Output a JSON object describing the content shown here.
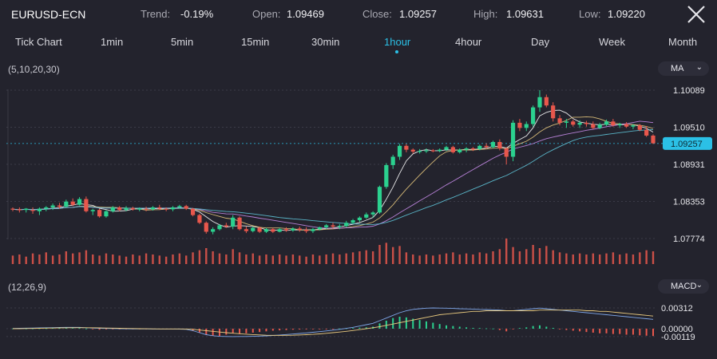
{
  "header": {
    "symbol": "EURUSD-ECN",
    "trend_label": "Trend:",
    "trend_value": "-0.19%",
    "open_label": "Open:",
    "open_value": "1.09469",
    "close_label": "Close:",
    "close_value": "1.09257",
    "high_label": "High:",
    "high_value": "1.09631",
    "low_label": "Low:",
    "low_value": "1.09220",
    "close_icon": "close-x-icon"
  },
  "tabs": [
    "Tick Chart",
    "1min",
    "5min",
    "15min",
    "30min",
    "1hour",
    "4hour",
    "Day",
    "Week",
    "Month"
  ],
  "active_tab": "1hour",
  "price_panel": {
    "ma_params": "(5,10,20,30)",
    "indicator_label": "MA",
    "price_levels": [
      "1.10089",
      "1.09510",
      "1.08931",
      "1.08353",
      "1.07774"
    ],
    "current_price": "1.09257"
  },
  "macd_panel": {
    "params": "(12,26,9)",
    "indicator_label": "MACD",
    "levels": [
      "0.00312",
      "0.00000",
      "-0.00119"
    ]
  },
  "colors": {
    "background": "#23232d",
    "bull": "#2bd18f",
    "bear": "#e8574c",
    "accent": "#2bc0e6",
    "ma5": "#ffffff",
    "ma10": "#e8c97e",
    "ma20": "#c58be8",
    "ma30": "#5fc4d8"
  },
  "chart_data": {
    "type": "candlestick",
    "timeframe": "1hour",
    "y_ticks": [
      1.07774,
      1.08353,
      1.08931,
      1.0951,
      1.10089
    ],
    "current_price": 1.09257,
    "candles": [
      [
        1.0824,
        1.0826,
        1.082,
        1.0823
      ],
      [
        1.0823,
        1.0826,
        1.0818,
        1.0822
      ],
      [
        1.0822,
        1.0825,
        1.0818,
        1.0824
      ],
      [
        1.0822,
        1.0826,
        1.0816,
        1.0821
      ],
      [
        1.082,
        1.0826,
        1.0814,
        1.0824
      ],
      [
        1.0824,
        1.0828,
        1.082,
        1.0826
      ],
      [
        1.0826,
        1.0832,
        1.0822,
        1.0829
      ],
      [
        1.0829,
        1.0833,
        1.0824,
        1.0827
      ],
      [
        1.0827,
        1.0838,
        1.0826,
        1.0835
      ],
      [
        1.0835,
        1.084,
        1.0828,
        1.083
      ],
      [
        1.083,
        1.0842,
        1.0829,
        1.0839
      ],
      [
        1.0839,
        1.0843,
        1.0818,
        1.082
      ],
      [
        1.082,
        1.0824,
        1.0814,
        1.0822
      ],
      [
        1.0822,
        1.0824,
        1.081,
        1.0812
      ],
      [
        1.0812,
        1.0822,
        1.081,
        1.082
      ],
      [
        1.082,
        1.0828,
        1.0818,
        1.0826
      ],
      [
        1.0826,
        1.0828,
        1.082,
        1.0822
      ],
      [
        1.0822,
        1.0828,
        1.082,
        1.0825
      ],
      [
        1.0825,
        1.0827,
        1.0821,
        1.0823
      ],
      [
        1.0823,
        1.0826,
        1.082,
        1.0824
      ],
      [
        1.0824,
        1.0827,
        1.082,
        1.0823
      ],
      [
        1.0823,
        1.0828,
        1.0821,
        1.0826
      ],
      [
        1.0826,
        1.083,
        1.0822,
        1.0824
      ],
      [
        1.0824,
        1.0826,
        1.082,
        1.0823
      ],
      [
        1.0823,
        1.0828,
        1.082,
        1.0826
      ],
      [
        1.0826,
        1.083,
        1.0824,
        1.0828
      ],
      [
        1.0828,
        1.083,
        1.0822,
        1.0824
      ],
      [
        1.0824,
        1.0825,
        1.0812,
        1.0814
      ],
      [
        1.0814,
        1.0816,
        1.08,
        1.0802
      ],
      [
        1.0802,
        1.0804,
        1.0785,
        1.0788
      ],
      [
        1.0788,
        1.0795,
        1.0784,
        1.0792
      ],
      [
        1.0792,
        1.08,
        1.079,
        1.0798
      ],
      [
        1.0798,
        1.0802,
        1.0794,
        1.0796
      ],
      [
        1.0796,
        1.0814,
        1.0792,
        1.081
      ],
      [
        1.081,
        1.0812,
        1.079,
        1.0792
      ],
      [
        1.0792,
        1.0796,
        1.0786,
        1.0789
      ],
      [
        1.0789,
        1.0796,
        1.0787,
        1.0794
      ],
      [
        1.0794,
        1.0796,
        1.0786,
        1.0788
      ],
      [
        1.0788,
        1.0794,
        1.0786,
        1.0792
      ],
      [
        1.0792,
        1.0794,
        1.0786,
        1.0788
      ],
      [
        1.0788,
        1.0794,
        1.0787,
        1.0792
      ],
      [
        1.0792,
        1.0795,
        1.0788,
        1.079
      ],
      [
        1.079,
        1.0795,
        1.0788,
        1.0793
      ],
      [
        1.0793,
        1.0796,
        1.0788,
        1.0791
      ],
      [
        1.0791,
        1.0795,
        1.0786,
        1.0789
      ],
      [
        1.0789,
        1.0794,
        1.0786,
        1.0792
      ],
      [
        1.0792,
        1.0796,
        1.079,
        1.0795
      ],
      [
        1.0795,
        1.08,
        1.0792,
        1.0798
      ],
      [
        1.0798,
        1.0802,
        1.0793,
        1.0796
      ],
      [
        1.0796,
        1.08,
        1.0792,
        1.0797
      ],
      [
        1.0797,
        1.0805,
        1.0795,
        1.0802
      ],
      [
        1.0802,
        1.0808,
        1.08,
        1.0806
      ],
      [
        1.0806,
        1.0812,
        1.0803,
        1.081
      ],
      [
        1.081,
        1.0818,
        1.0808,
        1.0815
      ],
      [
        1.0815,
        1.082,
        1.081,
        1.0818
      ],
      [
        1.0818,
        1.086,
        1.0816,
        1.0858
      ],
      [
        1.0858,
        1.0895,
        1.0855,
        1.0892
      ],
      [
        1.0892,
        1.0908,
        1.0886,
        1.0905
      ],
      [
        1.0905,
        1.0925,
        1.09,
        1.0922
      ],
      [
        1.0922,
        1.0925,
        1.0912,
        1.0916
      ],
      [
        1.0916,
        1.0918,
        1.091,
        1.0913
      ],
      [
        1.0913,
        1.0917,
        1.091,
        1.0914
      ],
      [
        1.0914,
        1.0918,
        1.0911,
        1.0915
      ],
      [
        1.0915,
        1.0917,
        1.0912,
        1.0914
      ],
      [
        1.0914,
        1.0918,
        1.0912,
        1.0916
      ],
      [
        1.0916,
        1.0922,
        1.0914,
        1.092
      ],
      [
        1.092,
        1.0922,
        1.091,
        1.0912
      ],
      [
        1.0912,
        1.0918,
        1.091,
        1.0916
      ],
      [
        1.0916,
        1.092,
        1.0912,
        1.0918
      ],
      [
        1.0918,
        1.092,
        1.0914,
        1.0917
      ],
      [
        1.0917,
        1.0924,
        1.0915,
        1.0922
      ],
      [
        1.0922,
        1.0926,
        1.0918,
        1.092
      ],
      [
        1.092,
        1.093,
        1.0918,
        1.0928
      ],
      [
        1.0928,
        1.0932,
        1.0915,
        1.0918
      ],
      [
        1.0918,
        1.092,
        1.0893,
        1.0905
      ],
      [
        1.0905,
        1.0962,
        1.0898,
        1.0958
      ],
      [
        1.0958,
        1.0964,
        1.0945,
        1.095
      ],
      [
        1.095,
        1.096,
        1.0945,
        1.0956
      ],
      [
        1.0956,
        1.0985,
        1.0952,
        1.0982
      ],
      [
        1.0982,
        1.1009,
        1.0975,
        1.0998
      ],
      [
        1.0998,
        1.1002,
        1.0982,
        1.0985
      ],
      [
        1.0985,
        1.099,
        1.096,
        1.0965
      ],
      [
        1.0965,
        1.097,
        1.0954,
        1.0958
      ],
      [
        1.0958,
        1.0964,
        1.095,
        1.096
      ],
      [
        1.096,
        1.0963,
        1.0952,
        1.0955
      ],
      [
        1.0955,
        1.0962,
        1.095,
        1.0958
      ],
      [
        1.0958,
        1.0961,
        1.0952,
        1.0956
      ],
      [
        1.0956,
        1.096,
        1.0948,
        1.095
      ],
      [
        1.095,
        1.0958,
        1.0948,
        1.0955
      ],
      [
        1.0955,
        1.0963,
        1.0953,
        1.096
      ],
      [
        1.096,
        1.0964,
        1.0952,
        1.0954
      ],
      [
        1.0954,
        1.0958,
        1.095,
        1.0956
      ],
      [
        1.0956,
        1.0959,
        1.095,
        1.0952
      ],
      [
        1.0952,
        1.0956,
        1.0948,
        1.0954
      ],
      [
        1.0954,
        1.0956,
        1.0945,
        1.0947
      ],
      [
        1.0947,
        1.0953,
        1.0936,
        1.0938
      ],
      [
        1.0938,
        1.094,
        1.0925,
        1.0926
      ]
    ],
    "ma_lines": [
      {
        "name": "MA5",
        "color": "#ffffff"
      },
      {
        "name": "MA10",
        "color": "#e8c97e"
      },
      {
        "name": "MA20",
        "color": "#c58be8"
      },
      {
        "name": "MA30",
        "color": "#5fc4d8"
      }
    ],
    "volume": [
      8,
      9,
      7,
      10,
      9,
      11,
      8,
      9,
      12,
      10,
      11,
      13,
      9,
      8,
      10,
      9,
      8,
      7,
      9,
      8,
      10,
      9,
      8,
      7,
      9,
      10,
      8,
      11,
      13,
      15,
      12,
      10,
      9,
      14,
      11,
      9,
      10,
      8,
      9,
      8,
      9,
      8,
      9,
      8,
      7,
      9,
      8,
      9,
      10,
      9,
      10,
      11,
      12,
      13,
      12,
      18,
      20,
      16,
      17,
      11,
      9,
      8,
      9,
      8,
      9,
      10,
      11,
      9,
      10,
      9,
      11,
      10,
      12,
      14,
      24,
      16,
      12,
      14,
      18,
      15,
      17,
      13,
      11,
      10,
      9,
      10,
      9,
      10,
      9,
      10,
      11,
      9,
      10,
      9,
      11,
      13,
      12
    ],
    "macd": {
      "y_ticks": [
        0.00312,
        0.0,
        -0.00119
      ],
      "histogram": [
        3e-05,
        4e-05,
        2e-05,
        3e-05,
        5e-05,
        6e-05,
        8e-05,
        9e-05,
        0.0001,
        0.0001,
        0.0001,
        2e-05,
        -0.0001,
        -0.00015,
        -0.0001,
        -0.0001,
        -0.0001,
        -8e-05,
        -6e-05,
        -5e-05,
        -4e-05,
        -4e-05,
        -3e-05,
        -3e-05,
        -2e-05,
        -2e-05,
        -3e-05,
        -0.0003,
        -0.0006,
        -0.0009,
        -0.00105,
        -0.0011,
        -0.0009,
        -0.0007,
        -0.0008,
        -0.0007,
        -0.0006,
        -0.0005,
        -0.0004,
        -0.0003,
        -0.00025,
        -0.0002,
        -0.00015,
        -0.00012,
        -0.0001,
        -8e-05,
        -6e-05,
        -4e-05,
        -2e-05,
        2e-05,
        6e-05,
        0.0001,
        0.00015,
        0.0002,
        0.0003,
        0.0008,
        0.0012,
        0.0016,
        0.0018,
        0.0017,
        0.0015,
        0.0013,
        0.0011,
        0.0009,
        0.0007,
        0.0005,
        0.0004,
        0.0003,
        0.0002,
        0.00012,
        0.0001,
        5e-05,
        2e-05,
        -0.0002,
        -0.0004,
        -0.0001,
        0.0001,
        0.0002,
        0.0004,
        0.0005,
        0.0003,
        0.00012,
        -0.0001,
        -0.0002,
        -0.0003,
        -0.0004,
        -0.0005,
        -0.0006,
        -0.0007,
        -0.0007,
        -0.0008,
        -0.0008,
        -0.0009,
        -0.0009,
        -0.001,
        -0.00105,
        -0.0011
      ],
      "dif": [
        4e-05,
        6e-05,
        8e-05,
        0.0001,
        0.00012,
        0.00014,
        0.00016,
        0.00018,
        0.0002,
        0.0002,
        0.0002,
        0.00014,
        0.0001,
        6e-05,
        4e-05,
        2e-05,
        0.0,
        -2e-05,
        -3e-05,
        -4e-05,
        -4e-05,
        -5e-05,
        -5e-05,
        -5e-05,
        -5e-05,
        -6e-05,
        -0.0001,
        -0.0003,
        -0.0006,
        -0.0009,
        -0.00105,
        -0.00115,
        -0.00118,
        -0.00119,
        -0.00118,
        -0.00117,
        -0.00115,
        -0.00112,
        -0.00108,
        -0.00102,
        -0.00095,
        -0.00088,
        -0.0008,
        -0.00072,
        -0.00063,
        -0.00054,
        -0.00044,
        -0.00034,
        -0.00022,
        -0.0001,
        5e-05,
        0.0002,
        0.0004,
        0.0006,
        0.0008,
        0.0012,
        0.0016,
        0.002,
        0.0024,
        0.0027,
        0.0029,
        0.003,
        0.00308,
        0.00312,
        0.0031,
        0.00308,
        0.00305,
        0.003,
        0.00298,
        0.00295,
        0.0029,
        0.00288,
        0.00285,
        0.0028,
        0.0027,
        0.0027,
        0.0028,
        0.0029,
        0.003,
        0.0031,
        0.003,
        0.0029,
        0.0028,
        0.0027,
        0.0026,
        0.0025,
        0.0024,
        0.0023,
        0.0022,
        0.0021,
        0.002,
        0.0019,
        0.0018,
        0.0017,
        0.0016,
        0.0015,
        0.0014
      ],
      "dea": [
        0.0,
        0.0,
        2e-05,
        4e-05,
        6e-05,
        8e-05,
        0.0001,
        0.00012,
        0.00013,
        0.00014,
        0.00015,
        0.00015,
        0.00014,
        0.00012,
        0.0001,
        8e-05,
        6e-05,
        4e-05,
        2e-05,
        0.0,
        -1e-05,
        -2e-05,
        -3e-05,
        -3e-05,
        -4e-05,
        -4e-05,
        -5e-05,
        -0.0001,
        -0.0002,
        -0.0003,
        -0.0004,
        -0.0005,
        -0.0006,
        -0.00068,
        -0.00076,
        -0.00083,
        -0.00089,
        -0.00094,
        -0.00098,
        -0.001,
        -0.00101,
        -0.001,
        -0.00098,
        -0.00095,
        -0.0009,
        -0.00085,
        -0.00078,
        -0.0007,
        -0.0006,
        -0.0005,
        -0.0004,
        -0.00028,
        -0.00014,
        0.0,
        0.00015,
        0.0003,
        0.0005,
        0.0007,
        0.0009,
        0.0011,
        0.0013,
        0.0015,
        0.0017,
        0.0019,
        0.0021,
        0.0022,
        0.0023,
        0.0024,
        0.0025,
        0.0026,
        0.0026,
        0.0027,
        0.0027,
        0.0027,
        0.0027,
        0.0027,
        0.0027,
        0.0027,
        0.0027,
        0.0028,
        0.0028,
        0.0028,
        0.0028,
        0.0028,
        0.0028,
        0.0028,
        0.0027,
        0.0027,
        0.0026,
        0.0026,
        0.0025,
        0.0024,
        0.0023,
        0.0022,
        0.0021,
        0.002,
        0.0019
      ]
    }
  }
}
